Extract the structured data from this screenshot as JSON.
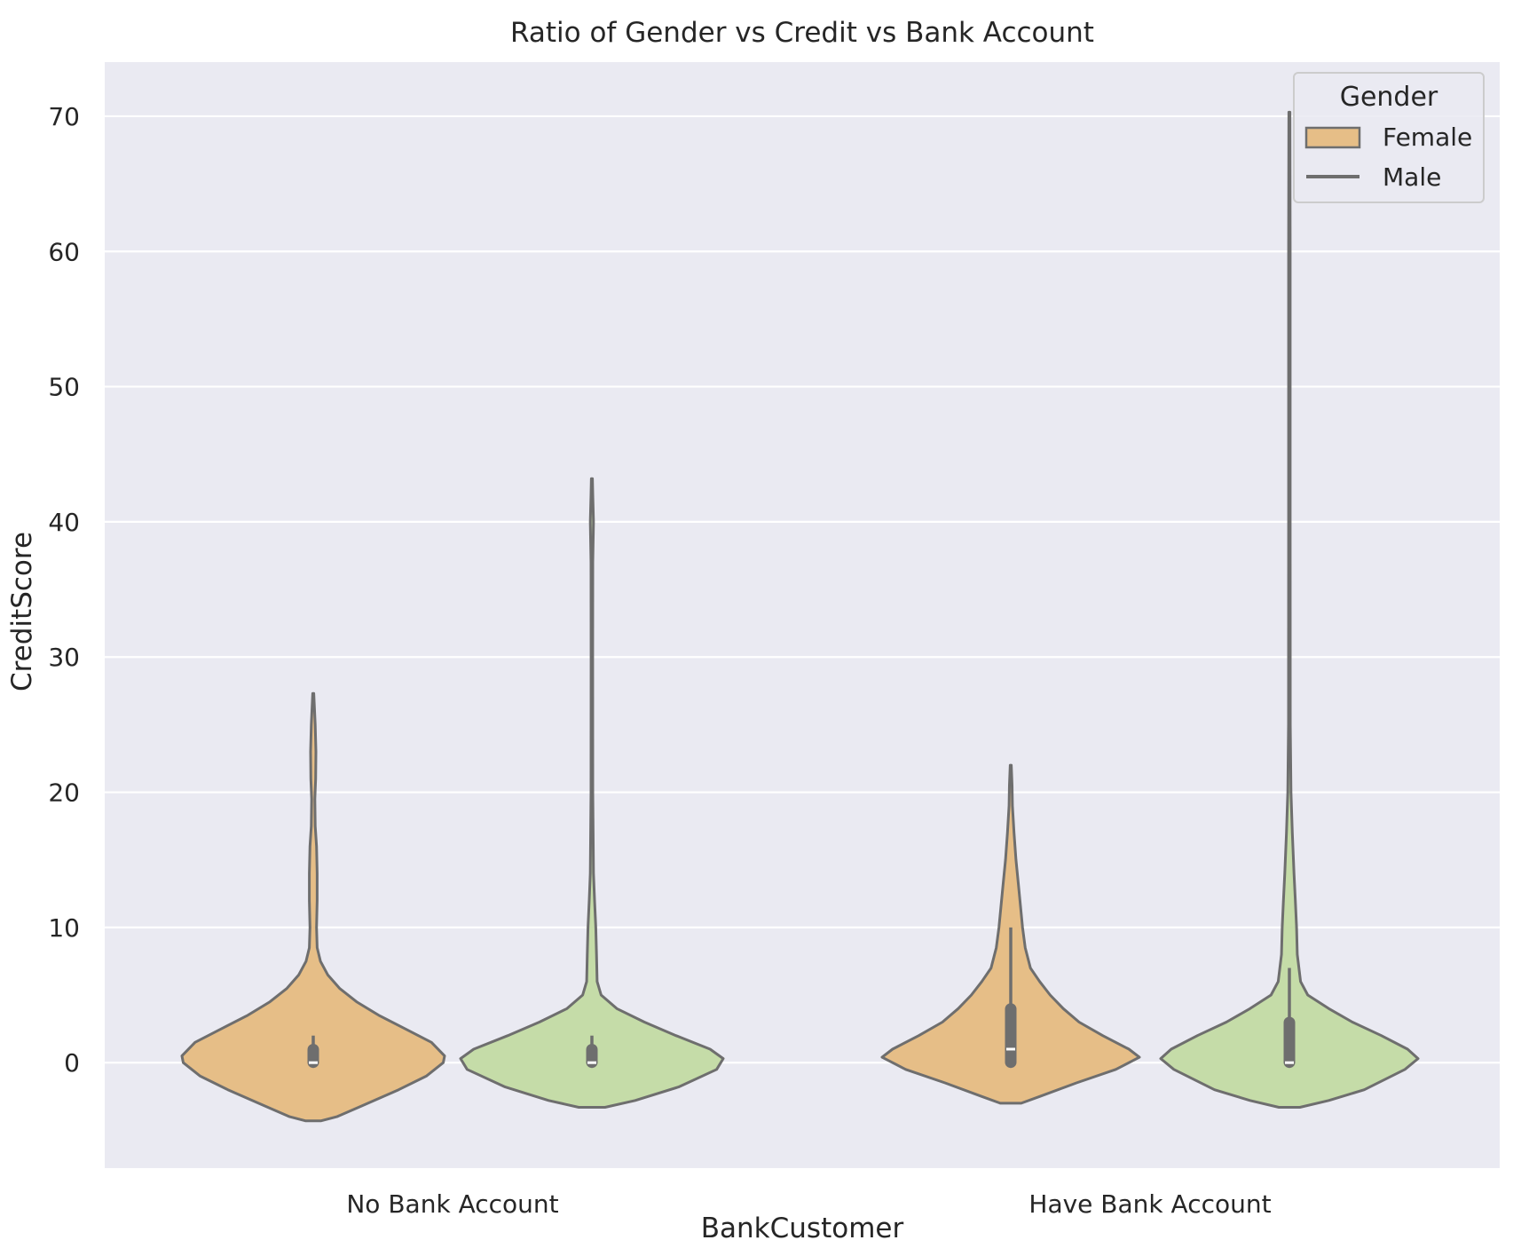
{
  "chart_data": {
    "type": "violin",
    "title": "Ratio of Gender vs Credit vs Bank Account",
    "xlabel": "BankCustomer",
    "ylabel": "CreditScore",
    "categories": [
      "No Bank Account",
      "Have Bank Account"
    ],
    "ylim": [
      -7.8,
      74
    ],
    "yticks": [
      0,
      10,
      20,
      30,
      40,
      50,
      60,
      70
    ],
    "grid": true,
    "legend": {
      "title": "Gender",
      "position": "top-right",
      "entries": [
        "Female",
        "Male"
      ]
    },
    "colors": {
      "background": "#eaeaf2",
      "grid": "#ffffff",
      "outline": "#6e6e6e",
      "text": "#262626",
      "female_fill": "#e6be87",
      "male_fill": "#c5dca8",
      "median": "#ffffff"
    },
    "series": [
      {
        "name": "Female",
        "fill": "#e6be87",
        "violins": [
          {
            "category": "No Bank Account",
            "min": 0,
            "q1": 0,
            "median": 0,
            "q3": 1,
            "whisker_high": 2,
            "profile": [
              [
                -4.3,
                0.06
              ],
              [
                -4.0,
                0.18
              ],
              [
                -3.2,
                0.37
              ],
              [
                -2.0,
                0.65
              ],
              [
                -1.0,
                0.86
              ],
              [
                0.0,
                0.99
              ],
              [
                0.5,
                1.0
              ],
              [
                1.5,
                0.9
              ],
              [
                2.5,
                0.7
              ],
              [
                3.5,
                0.5
              ],
              [
                4.5,
                0.33
              ],
              [
                5.5,
                0.2
              ],
              [
                6.5,
                0.11
              ],
              [
                7.5,
                0.055
              ],
              [
                8.5,
                0.03
              ],
              [
                10.0,
                0.025
              ],
              [
                12.0,
                0.03
              ],
              [
                14.0,
                0.03
              ],
              [
                16.0,
                0.025
              ],
              [
                17.5,
                0.015
              ],
              [
                19.5,
                0.012
              ],
              [
                21.0,
                0.018
              ],
              [
                23.0,
                0.02
              ],
              [
                25.0,
                0.015
              ],
              [
                27.3,
                0.004
              ]
            ]
          },
          {
            "category": "Have Bank Account",
            "min": 0,
            "q1": 0,
            "median": 1,
            "q3": 4,
            "whisker_high": 10,
            "profile": [
              [
                -3.0,
                0.08
              ],
              [
                -2.5,
                0.22
              ],
              [
                -1.5,
                0.5
              ],
              [
                -0.5,
                0.8
              ],
              [
                0.4,
                0.98
              ],
              [
                1.0,
                0.9
              ],
              [
                2.0,
                0.7
              ],
              [
                3.0,
                0.52
              ],
              [
                4.0,
                0.4
              ],
              [
                5.0,
                0.3
              ],
              [
                6.0,
                0.22
              ],
              [
                7.0,
                0.15
              ],
              [
                8.5,
                0.11
              ],
              [
                10.0,
                0.09
              ],
              [
                11.5,
                0.075
              ],
              [
                13.0,
                0.06
              ],
              [
                15.0,
                0.04
              ],
              [
                17.0,
                0.025
              ],
              [
                19.0,
                0.013
              ],
              [
                20.5,
                0.01
              ],
              [
                22.0,
                0.004
              ]
            ]
          }
        ]
      },
      {
        "name": "Male",
        "fill": "#c5dca8",
        "violins": [
          {
            "category": "No Bank Account",
            "min": 0,
            "q1": 0,
            "median": 0,
            "q3": 1,
            "whisker_high": 2,
            "profile": [
              [
                -3.3,
                0.1
              ],
              [
                -2.8,
                0.33
              ],
              [
                -1.8,
                0.66
              ],
              [
                -0.5,
                0.95
              ],
              [
                0.3,
                1.0
              ],
              [
                1.0,
                0.9
              ],
              [
                2.0,
                0.64
              ],
              [
                3.0,
                0.4
              ],
              [
                4.0,
                0.19
              ],
              [
                5.0,
                0.07
              ],
              [
                6.0,
                0.04
              ],
              [
                8.0,
                0.035
              ],
              [
                10.0,
                0.03
              ],
              [
                12.0,
                0.02
              ],
              [
                14.0,
                0.012
              ],
              [
                20.0,
                0.007
              ],
              [
                30.0,
                0.006
              ],
              [
                37.0,
                0.007
              ],
              [
                40.0,
                0.012
              ],
              [
                42.0,
                0.007
              ],
              [
                43.2,
                0.004
              ]
            ]
          },
          {
            "category": "Have Bank Account",
            "min": 0,
            "q1": 0,
            "median": 0,
            "q3": 3,
            "whisker_high": 7,
            "profile": [
              [
                -3.3,
                0.08
              ],
              [
                -2.8,
                0.3
              ],
              [
                -2.0,
                0.57
              ],
              [
                -0.5,
                0.88
              ],
              [
                0.3,
                0.98
              ],
              [
                1.0,
                0.9
              ],
              [
                2.0,
                0.7
              ],
              [
                3.0,
                0.48
              ],
              [
                4.0,
                0.3
              ],
              [
                5.0,
                0.14
              ],
              [
                6.0,
                0.085
              ],
              [
                8.0,
                0.06
              ],
              [
                10.0,
                0.055
              ],
              [
                12.0,
                0.045
              ],
              [
                14.0,
                0.035
              ],
              [
                17.0,
                0.022
              ],
              [
                20.0,
                0.012
              ],
              [
                25.0,
                0.007
              ],
              [
                40.0,
                0.006
              ],
              [
                60.0,
                0.006
              ],
              [
                70.3,
                0.004
              ]
            ]
          }
        ]
      }
    ]
  }
}
